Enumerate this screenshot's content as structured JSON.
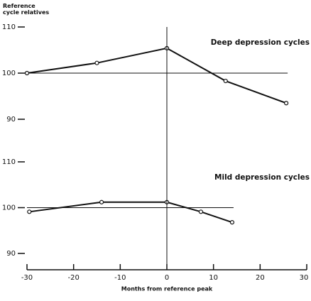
{
  "chart_data": {
    "type": "line",
    "ylabel": "Reference cycle relatives",
    "xlabel": "Months from reference peak",
    "xlim": [
      -30,
      30
    ],
    "xticks": [
      -30,
      -20,
      -10,
      0,
      10,
      20,
      30
    ],
    "reference_x": 0,
    "color": "#111111",
    "panels": [
      {
        "title": "Deep depression cycles",
        "x": [
          -30,
          -15,
          0,
          12.6,
          25.6
        ],
        "values": [
          100,
          102.2,
          105.4,
          98.3,
          93.5
        ],
        "ylim": [
          90,
          110
        ],
        "yticks": [
          90,
          100,
          110
        ],
        "reference_line": 100
      },
      {
        "title": "Mild depression cycles",
        "x": [
          -29.5,
          -14,
          0,
          7.3,
          14
        ],
        "values": [
          99.1,
          101.2,
          101.2,
          99.1,
          96.8
        ],
        "ylim": [
          90,
          110
        ],
        "yticks": [
          90,
          100,
          110
        ],
        "reference_line": 100
      }
    ]
  }
}
